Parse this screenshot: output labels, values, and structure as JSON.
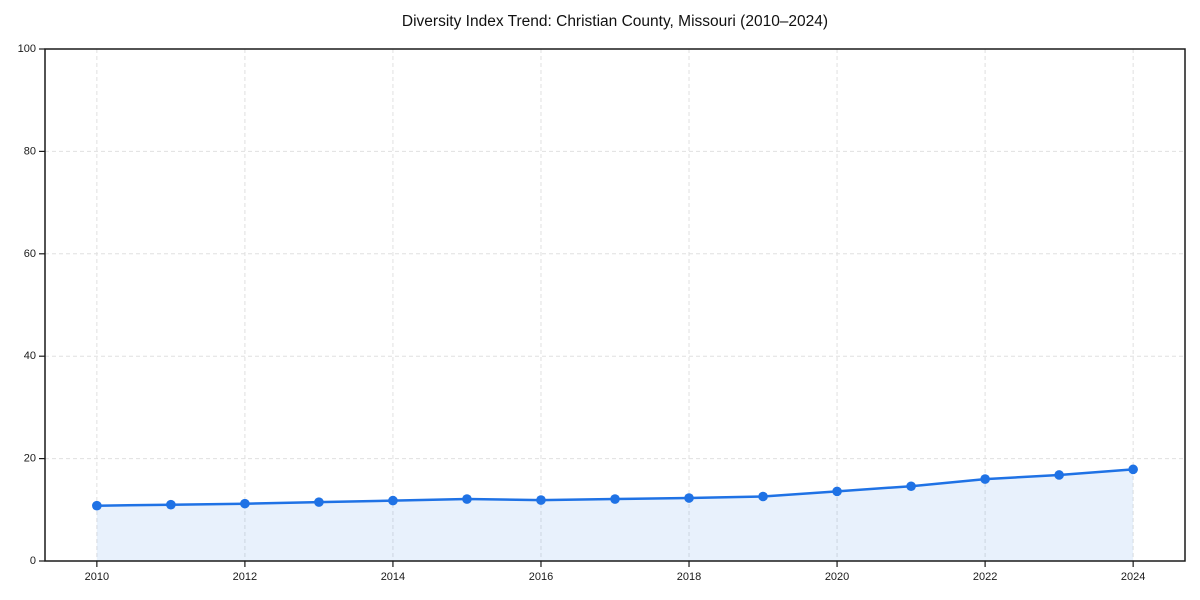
{
  "chart_data": {
    "type": "line",
    "title": "Diversity Index Trend: Christian County, Missouri (2010–2024)",
    "x": [
      2010,
      2011,
      2012,
      2013,
      2014,
      2015,
      2016,
      2017,
      2018,
      2019,
      2020,
      2021,
      2022,
      2023,
      2024
    ],
    "series": [
      {
        "name": "Diversity Index",
        "values": [
          10.8,
          11.0,
          11.2,
          11.5,
          11.8,
          12.1,
          11.9,
          12.1,
          12.3,
          12.6,
          13.6,
          14.6,
          16.0,
          16.8,
          17.9
        ]
      }
    ],
    "xlabel": "",
    "ylabel": "",
    "xlim": [
      2010,
      2024
    ],
    "ylim": [
      0,
      100
    ],
    "xticks": [
      2010,
      2012,
      2014,
      2016,
      2018,
      2020,
      2022,
      2024
    ],
    "yticks": [
      0,
      20,
      40,
      60,
      80,
      100
    ],
    "grid": "dashed",
    "legend": "none",
    "area_fill": true,
    "colors": {
      "line": "#1f72e5",
      "marker": "#1f72e5",
      "area": "rgba(31,114,229,0.10)",
      "grid": "#e0e0e0",
      "axis": "#1a1a1a",
      "tick_label": "#1a1a1a",
      "title": "#111111",
      "background": "#ffffff"
    }
  }
}
